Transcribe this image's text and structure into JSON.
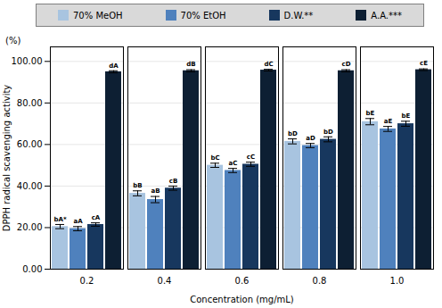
{
  "chart_data": {
    "type": "bar",
    "categories": [
      "0.2",
      "0.4",
      "0.6",
      "0.8",
      "1.0"
    ],
    "series": [
      {
        "name": "70% MeOH",
        "color": "#a8c4e0",
        "values": [
          20.5,
          36.5,
          50.0,
          61.5,
          71.0
        ],
        "errors": [
          1.0,
          1.2,
          1.0,
          1.2,
          1.5
        ],
        "labels": [
          "bA*",
          "bB",
          "bC",
          "bD",
          "bE"
        ]
      },
      {
        "name": "70% EtOH",
        "color": "#4f81bd",
        "values": [
          19.5,
          33.5,
          47.5,
          59.5,
          67.5
        ],
        "errors": [
          1.0,
          1.5,
          1.0,
          1.0,
          1.2
        ],
        "labels": [
          "aA",
          "aB",
          "aC",
          "aD",
          "aE"
        ]
      },
      {
        "name": "D.W.**",
        "color": "#17375e",
        "values": [
          21.5,
          39.0,
          50.5,
          62.5,
          70.0
        ],
        "errors": [
          0.8,
          1.0,
          1.0,
          1.2,
          1.2
        ],
        "labels": [
          "cA",
          "cB",
          "cC",
          "bD",
          "bE"
        ]
      },
      {
        "name": "A.A.***",
        "color": "#0d1f33",
        "values": [
          95.0,
          95.5,
          95.8,
          95.5,
          96.0
        ],
        "errors": [
          0.5,
          0.5,
          0.4,
          0.5,
          0.4
        ],
        "labels": [
          "dA",
          "dB",
          "dC",
          "cD",
          "cE"
        ]
      }
    ],
    "ylim": [
      0,
      107
    ],
    "yticks": [
      {
        "value": 0,
        "label": "0.00"
      },
      {
        "value": 20,
        "label": "20.00"
      },
      {
        "value": 40,
        "label": "40.00"
      },
      {
        "value": 60,
        "label": "60.00"
      },
      {
        "value": 80,
        "label": "80.00"
      },
      {
        "value": 100,
        "label": "100.00"
      }
    ],
    "ylabel": "DPPH radical scavenging activity",
    "xlabel": "Concentration (mg/mL)",
    "annotations": [
      "(%)"
    ],
    "grid": true,
    "legend": "top"
  }
}
